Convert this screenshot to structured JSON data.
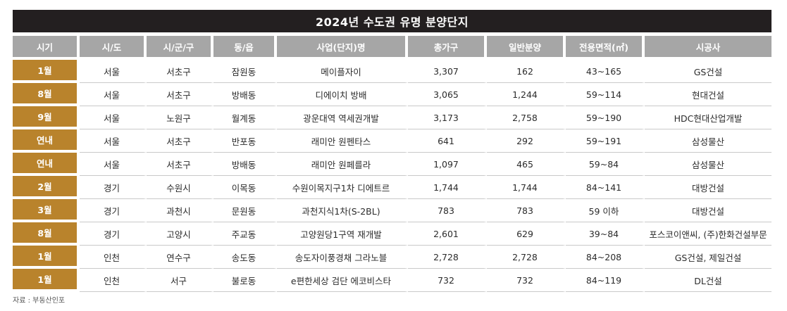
{
  "title": "2024년 수도권 유명 분양단지",
  "columns": [
    "시기",
    "시/도",
    "시/군/구",
    "동/읍",
    "사업(단지)명",
    "총가구",
    "일반분양",
    "전용면적(㎡)",
    "시공사"
  ],
  "rows": [
    [
      "1월",
      "서울",
      "서초구",
      "잠원동",
      "메이플자이",
      "3,307",
      "162",
      "43~165",
      "GS건설"
    ],
    [
      "8월",
      "서울",
      "서초구",
      "방배동",
      "디에이치 방배",
      "3,065",
      "1,244",
      "59~114",
      "현대건설"
    ],
    [
      "9월",
      "서울",
      "노원구",
      "월계동",
      "광운대역 역세권개발",
      "3,173",
      "2,758",
      "59~190",
      "HDC현대산업개발"
    ],
    [
      "연내",
      "서울",
      "서초구",
      "반포동",
      "래미안 원펜타스",
      "641",
      "292",
      "59~191",
      "삼성물산"
    ],
    [
      "연내",
      "서울",
      "서초구",
      "방배동",
      "래미안 원페를라",
      "1,097",
      "465",
      "59~84",
      "삼성물산"
    ],
    [
      "2월",
      "경기",
      "수원시",
      "이목동",
      "수원이목지구1차 디에트르",
      "1,744",
      "1,744",
      "84~141",
      "대방건설"
    ],
    [
      "3월",
      "경기",
      "과천시",
      "문원동",
      "과천지식1차(S-2BL)",
      "783",
      "783",
      "59 이하",
      "대방건설"
    ],
    [
      "8월",
      "경기",
      "고양시",
      "주교동",
      "고양원당1구역 재개발",
      "2,601",
      "629",
      "39~84",
      "포스코이앤씨, (주)한화건설부문"
    ],
    [
      "1월",
      "인천",
      "연수구",
      "송도동",
      "송도자이풍경채 그라노블",
      "2,728",
      "2,728",
      "84~208",
      "GS건설, 제일건설"
    ],
    [
      "1월",
      "인천",
      "서구",
      "불로동",
      "e편한세상 검단 에코비스타",
      "732",
      "732",
      "84~119",
      "DL건설"
    ]
  ],
  "source": "자료 : 부동산인포",
  "colors": {
    "title_bg": "#231f20",
    "header_bg": "#a6a6a6",
    "period_bg": "#b9832c"
  }
}
